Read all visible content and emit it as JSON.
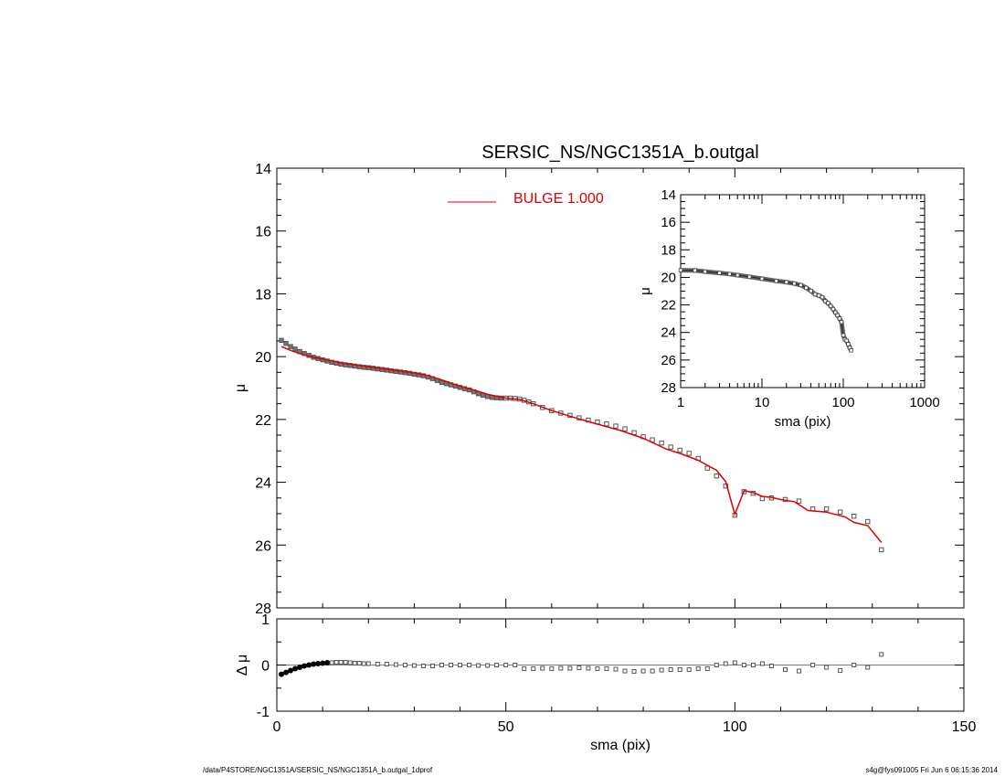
{
  "title": "SERSIC_NS/NGC1351A_b.outgal",
  "footer_left": "/data/P4STORE/NGC1351A/SERSIC_NS/NGC1351A_b.outgal_1dprof",
  "footer_right": "s4g@fys091005  Fri Jun  6 06:15:36 2014",
  "colors": {
    "axes": "#000000",
    "data": "#555555",
    "model": "#e00000",
    "legend": "#e00000"
  },
  "chart_data": [
    {
      "panel": "main",
      "type": "line",
      "xlim": [
        0,
        150
      ],
      "ylim": [
        28,
        14
      ],
      "ylabel": "μ",
      "xlabel": "",
      "yticks": [
        "14",
        "16",
        "18",
        "20",
        "22",
        "24",
        "26",
        "28"
      ],
      "legend": {
        "label": "BULGE  1.000",
        "placement": "top-center"
      },
      "observed": {
        "x": [
          1,
          2,
          3,
          4,
          5,
          6,
          7,
          8,
          9,
          10,
          11,
          12,
          13,
          14,
          15,
          16,
          17,
          18,
          19,
          20,
          21,
          22,
          23,
          24,
          25,
          26,
          27,
          28,
          29,
          30,
          31,
          32,
          33,
          34,
          35,
          36,
          37,
          38,
          39,
          40,
          41,
          42,
          43,
          44,
          45,
          46,
          47,
          48,
          49,
          50,
          51,
          52,
          53,
          54,
          55,
          56,
          58,
          60,
          62,
          64,
          66,
          68,
          70,
          72,
          74,
          76,
          78,
          80,
          82,
          84,
          86,
          88,
          90,
          92,
          94,
          96,
          98,
          100,
          102,
          104,
          106,
          108,
          111,
          114,
          117,
          120,
          123,
          126,
          129,
          132
        ],
        "y": [
          19.48,
          19.58,
          19.68,
          19.76,
          19.84,
          19.9,
          19.96,
          20.02,
          20.06,
          20.1,
          20.14,
          20.18,
          20.21,
          20.24,
          20.26,
          20.28,
          20.3,
          20.32,
          20.34,
          20.35,
          20.37,
          20.39,
          20.41,
          20.43,
          20.45,
          20.47,
          20.49,
          20.51,
          20.53,
          20.56,
          20.58,
          20.61,
          20.65,
          20.7,
          20.76,
          20.82,
          20.86,
          20.9,
          20.94,
          20.98,
          21.02,
          21.06,
          21.12,
          21.18,
          21.23,
          21.27,
          21.3,
          21.31,
          21.32,
          21.32,
          21.32,
          21.33,
          21.35,
          21.39,
          21.44,
          21.5,
          21.62,
          21.72,
          21.8,
          21.87,
          21.95,
          22.02,
          22.08,
          22.14,
          22.21,
          22.3,
          22.42,
          22.55,
          22.65,
          22.75,
          22.88,
          22.98,
          23.08,
          23.24,
          23.55,
          23.8,
          24.12,
          25.05,
          24.3,
          24.35,
          24.52,
          24.5,
          24.55,
          24.6,
          24.85,
          24.85,
          24.95,
          25.08,
          25.25,
          26.15
        ]
      },
      "model": {
        "x": [
          1,
          3,
          6,
          10,
          15,
          20,
          25,
          30,
          33,
          36,
          40,
          43,
          46,
          50,
          53,
          56,
          60,
          65,
          70,
          75,
          80,
          85,
          88,
          92,
          96,
          98,
          100,
          102,
          104,
          106,
          108,
          110,
          113,
          116,
          120,
          124,
          126,
          129,
          132
        ],
        "y": [
          19.68,
          19.8,
          19.95,
          20.08,
          20.22,
          20.32,
          20.42,
          20.52,
          20.6,
          20.74,
          20.94,
          21.06,
          21.2,
          21.32,
          21.36,
          21.5,
          21.72,
          21.94,
          22.15,
          22.35,
          22.6,
          22.94,
          23.08,
          23.3,
          23.62,
          23.98,
          25.02,
          24.27,
          24.33,
          24.45,
          24.48,
          24.55,
          24.62,
          24.9,
          24.95,
          25.1,
          25.28,
          25.38,
          25.92
        ]
      }
    },
    {
      "panel": "residual",
      "type": "scatter",
      "xlim": [
        0,
        150
      ],
      "ylim": [
        -1,
        1
      ],
      "xlabel": "sma (pix)",
      "ylabel": "Δ μ",
      "xticks": [
        "0",
        "50",
        "100",
        "150"
      ],
      "yticks": [
        "1",
        "0",
        "-1"
      ],
      "x": [
        1,
        2,
        3,
        4,
        5,
        6,
        7,
        8,
        9,
        10,
        11,
        12,
        13,
        14,
        15,
        16,
        17,
        18,
        19,
        20,
        22,
        24,
        26,
        28,
        30,
        32,
        34,
        36,
        38,
        40,
        42,
        44,
        46,
        48,
        50,
        52,
        54,
        56,
        58,
        60,
        62,
        64,
        66,
        68,
        70,
        72,
        74,
        76,
        78,
        80,
        82,
        84,
        86,
        88,
        90,
        92,
        94,
        96,
        98,
        100,
        102,
        104,
        106,
        108,
        111,
        114,
        117,
        120,
        123,
        126,
        129,
        132
      ],
      "y": [
        -0.2,
        -0.16,
        -0.12,
        -0.08,
        -0.05,
        -0.02,
        0.0,
        0.02,
        0.03,
        0.04,
        0.05,
        0.05,
        0.06,
        0.06,
        0.06,
        0.05,
        0.04,
        0.04,
        0.03,
        0.03,
        0.02,
        0.02,
        0.01,
        0.0,
        -0.01,
        -0.02,
        -0.02,
        0.0,
        0.0,
        0.0,
        0.0,
        -0.01,
        -0.01,
        0.0,
        0.0,
        0.0,
        -0.08,
        -0.08,
        -0.07,
        -0.08,
        -0.07,
        -0.07,
        -0.06,
        -0.07,
        -0.08,
        -0.08,
        -0.09,
        -0.13,
        -0.14,
        -0.13,
        -0.13,
        -0.11,
        -0.1,
        -0.1,
        -0.1,
        -0.08,
        -0.08,
        0.0,
        0.03,
        0.05,
        0.0,
        0.0,
        0.03,
        -0.02,
        -0.1,
        -0.13,
        0.0,
        -0.05,
        -0.12,
        0.0,
        -0.05,
        0.23
      ],
      "zero_line": 0
    },
    {
      "panel": "inset",
      "type": "line",
      "xscale": "log",
      "xlim": [
        1,
        1000
      ],
      "ylim": [
        28,
        14
      ],
      "xlabel": "sma (pix)",
      "ylabel": "μ",
      "xticks": [
        "1",
        "10",
        "100",
        "1000"
      ],
      "yticks": [
        "14",
        "16",
        "18",
        "20",
        "22",
        "24",
        "26",
        "28"
      ],
      "x": [
        1,
        1.5,
        2,
        3,
        4,
        5,
        7,
        10,
        15,
        20,
        25,
        30,
        35,
        40,
        45,
        50,
        55,
        60,
        65,
        70,
        75,
        80,
        85,
        90,
        95,
        100,
        105,
        110,
        115,
        120,
        125
      ],
      "y": [
        19.48,
        19.5,
        19.58,
        19.68,
        19.76,
        19.84,
        19.96,
        20.1,
        20.26,
        20.35,
        20.45,
        20.56,
        20.76,
        20.98,
        21.23,
        21.32,
        21.44,
        21.72,
        21.87,
        22.08,
        22.3,
        22.55,
        22.75,
        22.98,
        23.24,
        24.2,
        24.5,
        24.6,
        24.85,
        25.1,
        25.3
      ]
    }
  ]
}
